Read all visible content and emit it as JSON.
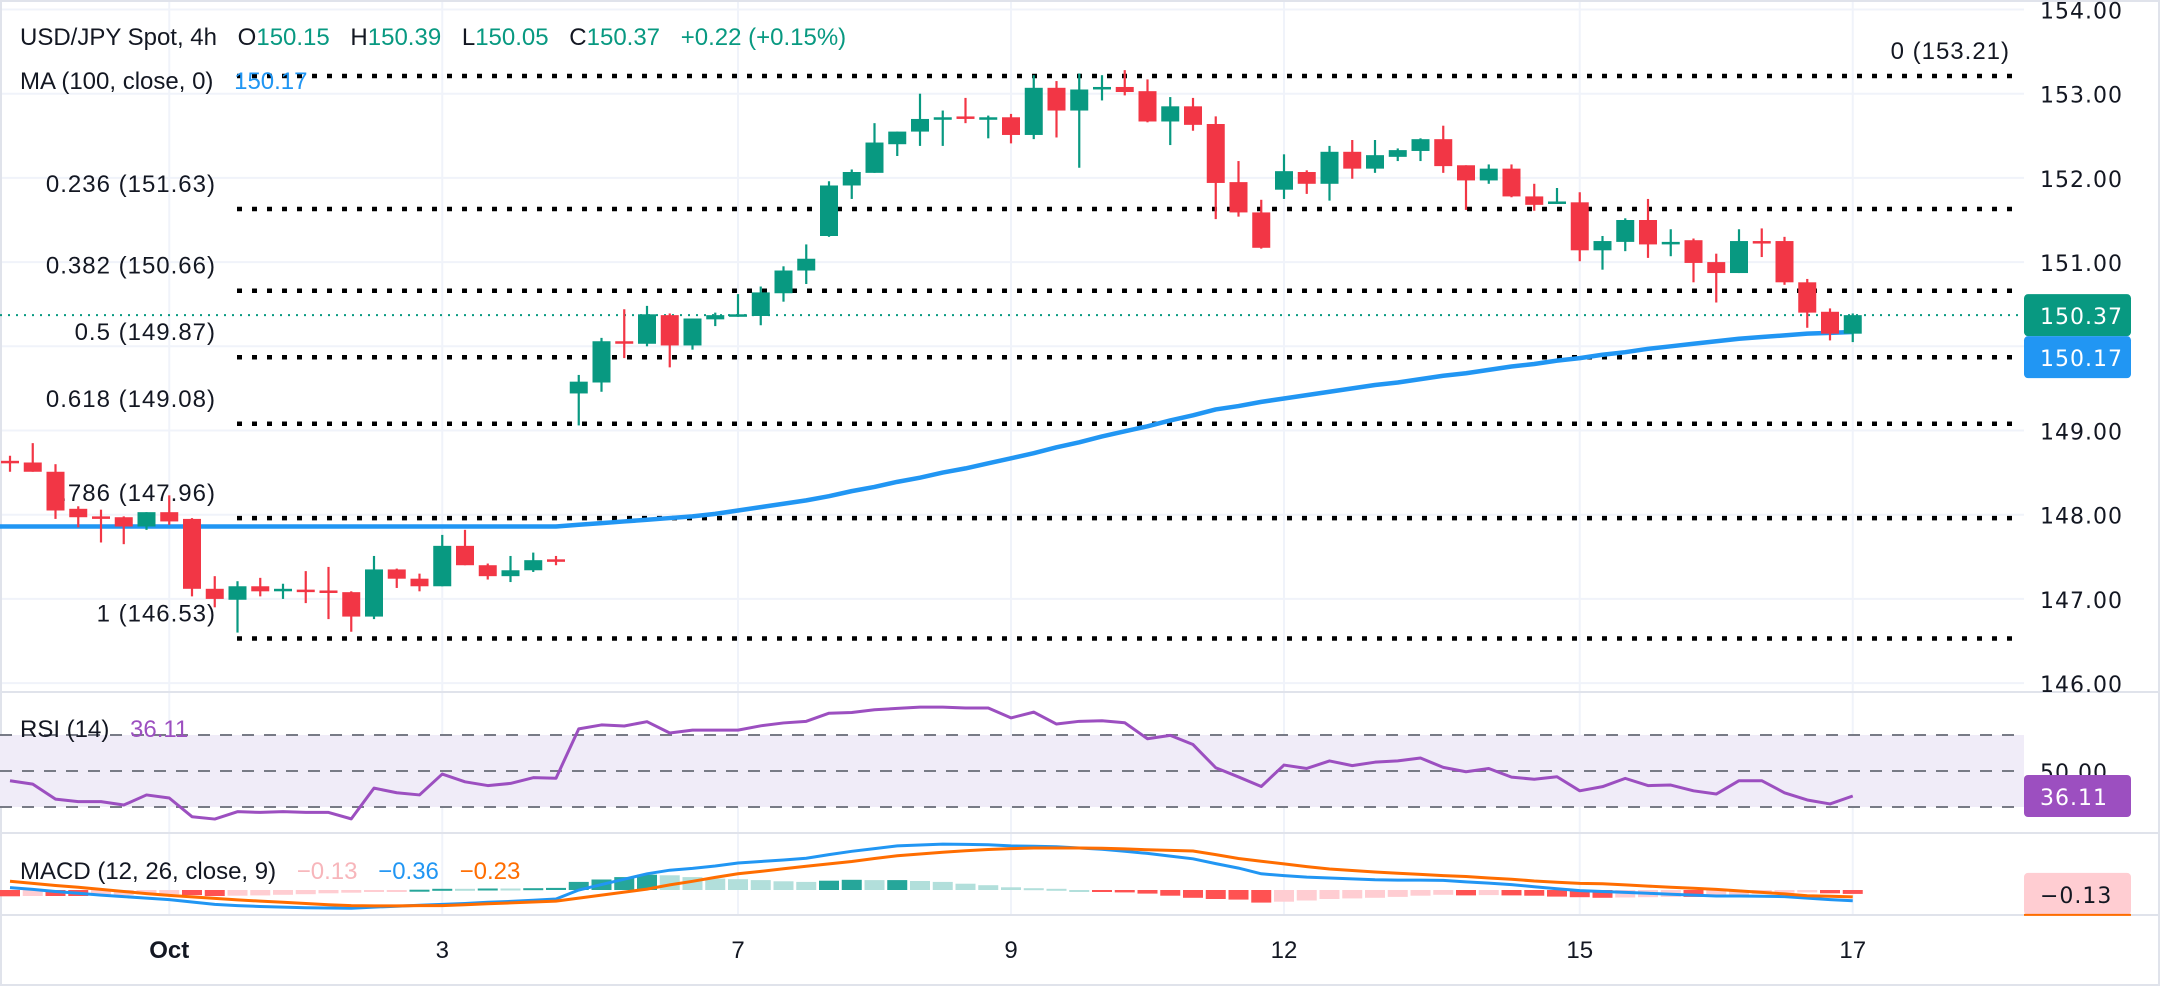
{
  "header": {
    "symbol": "USD/JPY Spot, 4h",
    "o_label": "O",
    "o": "150.15",
    "h_label": "H",
    "h": "150.39",
    "l_label": "L",
    "l": "150.05",
    "c_label": "C",
    "c": "150.37",
    "change": "+0.22 (+0.15%)"
  },
  "ma_legend": {
    "label": "MA (100, close, 0)",
    "value": "150.17"
  },
  "rsi_legend": {
    "label": "RSI (14)",
    "value": "36.11"
  },
  "macd_legend": {
    "label": "MACD (12, 26, close, 9)",
    "histogram": "−0.13",
    "macd": "−0.36",
    "signal": "−0.23"
  },
  "price_axis": {
    "ticks": [
      "154.00",
      "153.00",
      "152.00",
      "151.00",
      "149.00",
      "148.00",
      "147.00",
      "146.00"
    ],
    "last_price_label": "150.37",
    "ma_price_label": "150.17"
  },
  "rsi_axis": {
    "tick": "50.00",
    "value_label": "36.11"
  },
  "macd_axis": {
    "value_label": "−0.13"
  },
  "time_axis": [
    "Oct",
    "3",
    "7",
    "9",
    "12",
    "15",
    "17"
  ],
  "colors": {
    "up": "#089981",
    "down": "#f23645",
    "ma": "#2196f3",
    "rsi": "#9c4fc0",
    "rsi_band": "#f0ecf8",
    "macd": "#2196f3",
    "signal": "#ff6d00",
    "hist_up_strong": "#26a69a",
    "hist_up_weak": "#b2dfdb",
    "hist_down_strong": "#ff5252",
    "hist_down_weak": "#ffcdd2"
  },
  "chart_data": {
    "type": "candlestick",
    "symbol": "USD/JPY Spot",
    "interval": "4h",
    "ylim": [
      146,
      154
    ],
    "grid": true,
    "fib_levels": [
      {
        "label": "0 (153.21)",
        "price": 153.21
      },
      {
        "label": "0.236 (151.63)",
        "price": 151.63
      },
      {
        "label": "0.382 (150.66)",
        "price": 150.66
      },
      {
        "label": "0.5 (149.87)",
        "price": 149.87
      },
      {
        "label": "0.618 (149.08)",
        "price": 149.08
      },
      {
        "label": "0.786 (147.96)",
        "price": 147.96
      },
      {
        "label": "1 (146.53)",
        "price": 146.53
      }
    ],
    "ohlc": [
      [
        148.64,
        148.7,
        148.51,
        148.63
      ],
      [
        148.62,
        148.85,
        148.51,
        148.51
      ],
      [
        148.51,
        148.6,
        147.95,
        148.05
      ],
      [
        148.07,
        148.1,
        147.85,
        147.97
      ],
      [
        147.98,
        148.06,
        147.67,
        147.97
      ],
      [
        147.97,
        147.98,
        147.65,
        147.86
      ],
      [
        147.86,
        148.03,
        147.82,
        148.03
      ],
      [
        148.03,
        148.23,
        147.88,
        147.92
      ],
      [
        147.95,
        147.96,
        147.03,
        147.12
      ],
      [
        147.12,
        147.27,
        146.9,
        147.0
      ],
      [
        146.99,
        147.21,
        146.6,
        147.15
      ],
      [
        147.15,
        147.25,
        147.03,
        147.09
      ],
      [
        147.11,
        147.18,
        147.0,
        147.12
      ],
      [
        147.11,
        147.33,
        146.95,
        147.1
      ],
      [
        147.1,
        147.38,
        146.76,
        147.09
      ],
      [
        147.08,
        147.09,
        146.61,
        146.79
      ],
      [
        146.79,
        147.51,
        146.76,
        147.35
      ],
      [
        147.35,
        147.36,
        147.13,
        147.24
      ],
      [
        147.24,
        147.3,
        147.09,
        147.15
      ],
      [
        147.15,
        147.76,
        147.15,
        147.63
      ],
      [
        147.63,
        147.82,
        147.4,
        147.4
      ],
      [
        147.4,
        147.42,
        147.23,
        147.27
      ],
      [
        147.27,
        147.51,
        147.2,
        147.34
      ],
      [
        147.34,
        147.55,
        147.32,
        147.46
      ],
      [
        147.47,
        147.51,
        147.4,
        147.46
      ],
      [
        149.44,
        149.66,
        149.06,
        149.58
      ],
      [
        149.57,
        150.1,
        149.46,
        150.06
      ],
      [
        150.06,
        150.44,
        149.86,
        150.05
      ],
      [
        150.03,
        150.48,
        150.0,
        150.38
      ],
      [
        150.37,
        150.39,
        149.75,
        150.01
      ],
      [
        150.01,
        150.33,
        149.96,
        150.33
      ],
      [
        150.32,
        150.4,
        150.24,
        150.37
      ],
      [
        150.37,
        150.62,
        150.35,
        150.38
      ],
      [
        150.36,
        150.71,
        150.25,
        150.64
      ],
      [
        150.63,
        150.95,
        150.53,
        150.9
      ],
      [
        150.9,
        151.21,
        150.74,
        151.04
      ],
      [
        151.31,
        151.96,
        151.3,
        151.91
      ],
      [
        151.91,
        152.1,
        151.75,
        152.07
      ],
      [
        152.06,
        152.65,
        152.06,
        152.42
      ],
      [
        152.4,
        152.55,
        152.26,
        152.55
      ],
      [
        152.55,
        153.0,
        152.38,
        152.7
      ],
      [
        152.71,
        152.8,
        152.38,
        152.72
      ],
      [
        152.73,
        152.95,
        152.65,
        152.72
      ],
      [
        152.71,
        152.74,
        152.47,
        152.72
      ],
      [
        152.72,
        152.76,
        152.41,
        152.51
      ],
      [
        152.51,
        153.22,
        152.46,
        153.07
      ],
      [
        153.07,
        153.15,
        152.48,
        152.8
      ],
      [
        152.8,
        153.24,
        152.12,
        153.05
      ],
      [
        153.07,
        153.22,
        152.92,
        153.08
      ],
      [
        153.08,
        153.28,
        152.98,
        153.02
      ],
      [
        153.03,
        153.17,
        152.66,
        152.67
      ],
      [
        152.67,
        152.96,
        152.39,
        152.85
      ],
      [
        152.85,
        152.95,
        152.56,
        152.63
      ],
      [
        152.64,
        152.73,
        151.51,
        151.94
      ],
      [
        151.95,
        152.2,
        151.54,
        151.59
      ],
      [
        151.59,
        151.74,
        151.16,
        151.17
      ],
      [
        151.86,
        152.28,
        151.75,
        152.08
      ],
      [
        152.07,
        152.09,
        151.81,
        151.93
      ],
      [
        151.93,
        152.38,
        151.73,
        152.31
      ],
      [
        152.31,
        152.45,
        151.99,
        152.11
      ],
      [
        152.11,
        152.45,
        152.06,
        152.27
      ],
      [
        152.25,
        152.35,
        152.2,
        152.33
      ],
      [
        152.32,
        152.47,
        152.2,
        152.46
      ],
      [
        152.46,
        152.62,
        152.06,
        152.14
      ],
      [
        152.15,
        152.15,
        151.62,
        151.97
      ],
      [
        151.97,
        152.16,
        151.93,
        152.11
      ],
      [
        152.11,
        152.16,
        151.77,
        151.78
      ],
      [
        151.78,
        151.93,
        151.61,
        151.68
      ],
      [
        151.71,
        151.88,
        151.69,
        151.72
      ],
      [
        151.71,
        151.83,
        151.01,
        151.14
      ],
      [
        151.14,
        151.31,
        150.91,
        151.25
      ],
      [
        151.24,
        151.52,
        151.13,
        151.5
      ],
      [
        151.5,
        151.75,
        151.05,
        151.21
      ],
      [
        151.23,
        151.39,
        151.07,
        151.24
      ],
      [
        151.26,
        151.28,
        150.76,
        150.99
      ],
      [
        151.0,
        151.1,
        150.52,
        150.87
      ],
      [
        150.87,
        151.39,
        150.87,
        151.25
      ],
      [
        151.25,
        151.4,
        151.06,
        151.24
      ],
      [
        151.25,
        151.3,
        150.73,
        150.76
      ],
      [
        150.76,
        150.8,
        150.22,
        150.4
      ],
      [
        150.41,
        150.45,
        150.07,
        150.15
      ],
      [
        150.15,
        150.39,
        150.05,
        150.37
      ]
    ],
    "ma100": [
      147.86,
      147.86,
      147.86,
      147.86,
      147.86,
      147.86,
      147.86,
      147.86,
      147.86,
      147.86,
      147.86,
      147.86,
      147.86,
      147.86,
      147.86,
      147.86,
      147.86,
      147.86,
      147.86,
      147.86,
      147.86,
      147.86,
      147.86,
      147.86,
      147.86,
      147.88,
      147.9,
      147.92,
      147.94,
      147.96,
      147.98,
      148.01,
      148.05,
      148.09,
      148.13,
      148.17,
      148.22,
      148.28,
      148.33,
      148.39,
      148.44,
      148.5,
      148.55,
      148.61,
      148.67,
      148.73,
      148.8,
      148.86,
      148.93,
      148.99,
      149.05,
      149.12,
      149.18,
      149.25,
      149.29,
      149.34,
      149.38,
      149.42,
      149.46,
      149.5,
      149.54,
      149.57,
      149.61,
      149.65,
      149.68,
      149.72,
      149.76,
      149.79,
      149.83,
      149.86,
      149.9,
      149.93,
      149.97,
      150.0,
      150.03,
      150.06,
      150.09,
      150.11,
      150.13,
      150.15,
      150.16,
      150.17
    ],
    "rsi": {
      "levels": [
        70,
        50,
        30
      ],
      "values": [
        44.6,
        42.7,
        34.4,
        33,
        33,
        31.1,
        36.7,
        35,
        24.6,
        23.3,
        27.4,
        27,
        27.4,
        27,
        27,
        23.4,
        40.5,
        37.9,
        36.7,
        48.3,
        44,
        41.9,
        43.1,
        46.3,
        46,
        73.4,
        75.6,
        75,
        77.4,
        71.1,
        72.7,
        72.7,
        72.7,
        75.1,
        76.7,
        77.6,
        82.1,
        82.5,
        84,
        84.8,
        85.5,
        85.5,
        85,
        85,
        79.5,
        82.7,
        76.1,
        77.6,
        77.9,
        76.8,
        67.9,
        69.8,
        64.7,
        51.8,
        46.7,
        41.4,
        53.3,
        51.4,
        55.6,
        53,
        54.9,
        55.6,
        57.2,
        52,
        49.6,
        51.4,
        46.6,
        45.4,
        46.8,
        39,
        41.3,
        45.9,
        41.9,
        42.2,
        39,
        37.2,
        44.6,
        44.6,
        37.9,
        33.9,
        31.7,
        36.11
      ]
    },
    "macd": {
      "macd": [
        0.08,
        0.02,
        -0.05,
        -0.11,
        -0.17,
        -0.22,
        -0.27,
        -0.32,
        -0.4,
        -0.48,
        -0.52,
        -0.55,
        -0.57,
        -0.59,
        -0.6,
        -0.61,
        -0.57,
        -0.54,
        -0.51,
        -0.48,
        -0.45,
        -0.41,
        -0.38,
        -0.34,
        -0.3,
        0.0,
        0.18,
        0.36,
        0.54,
        0.66,
        0.72,
        0.8,
        0.9,
        0.95,
        1.0,
        1.06,
        1.18,
        1.29,
        1.38,
        1.47,
        1.5,
        1.53,
        1.52,
        1.51,
        1.47,
        1.46,
        1.44,
        1.4,
        1.36,
        1.29,
        1.22,
        1.13,
        1.04,
        0.88,
        0.73,
        0.54,
        0.48,
        0.43,
        0.4,
        0.37,
        0.34,
        0.33,
        0.33,
        0.32,
        0.27,
        0.23,
        0.18,
        0.11,
        0.04,
        -0.02,
        -0.05,
        -0.08,
        -0.11,
        -0.14,
        -0.17,
        -0.2,
        -0.2,
        -0.21,
        -0.22,
        -0.27,
        -0.32,
        -0.36
      ],
      "signal": [
        0.29,
        0.22,
        0.15,
        0.09,
        0.02,
        -0.05,
        -0.12,
        -0.18,
        -0.23,
        -0.28,
        -0.33,
        -0.37,
        -0.41,
        -0.45,
        -0.49,
        -0.52,
        -0.53,
        -0.53,
        -0.52,
        -0.52,
        -0.49,
        -0.46,
        -0.43,
        -0.4,
        -0.37,
        -0.27,
        -0.17,
        -0.07,
        0.03,
        0.17,
        0.29,
        0.42,
        0.54,
        0.62,
        0.71,
        0.79,
        0.87,
        0.95,
        1.05,
        1.14,
        1.2,
        1.26,
        1.31,
        1.35,
        1.38,
        1.4,
        1.4,
        1.4,
        1.39,
        1.37,
        1.34,
        1.32,
        1.3,
        1.18,
        1.05,
        0.96,
        0.87,
        0.78,
        0.7,
        0.65,
        0.6,
        0.56,
        0.52,
        0.48,
        0.45,
        0.4,
        0.36,
        0.3,
        0.26,
        0.22,
        0.21,
        0.17,
        0.13,
        0.09,
        0.06,
        0.02,
        -0.03,
        -0.08,
        -0.13,
        -0.19,
        -0.21,
        -0.23
      ]
    }
  }
}
